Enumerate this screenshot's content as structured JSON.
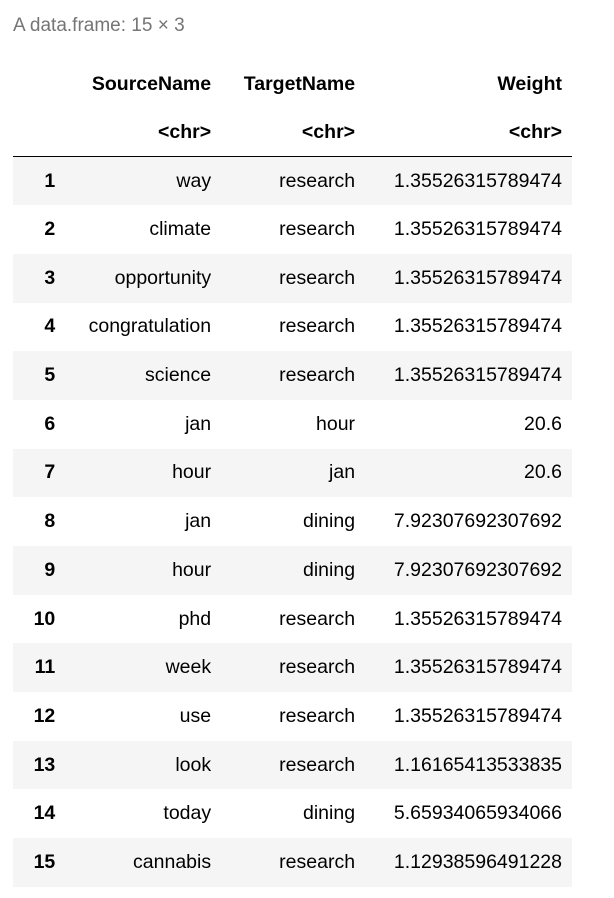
{
  "caption": "A data.frame: 15 × 3",
  "columns": [
    {
      "name": "",
      "type": ""
    },
    {
      "name": "SourceName",
      "type": "<chr>"
    },
    {
      "name": "TargetName",
      "type": "<chr>"
    },
    {
      "name": "Weight",
      "type": "<chr>"
    }
  ],
  "rows": [
    {
      "idx": "1",
      "source": "way",
      "target": "research",
      "weight": "1.35526315789474"
    },
    {
      "idx": "2",
      "source": "climate",
      "target": "research",
      "weight": "1.35526315789474"
    },
    {
      "idx": "3",
      "source": "opportunity",
      "target": "research",
      "weight": "1.35526315789474"
    },
    {
      "idx": "4",
      "source": "congratulation",
      "target": "research",
      "weight": "1.35526315789474"
    },
    {
      "idx": "5",
      "source": "science",
      "target": "research",
      "weight": "1.35526315789474"
    },
    {
      "idx": "6",
      "source": "jan",
      "target": "hour",
      "weight": "20.6"
    },
    {
      "idx": "7",
      "source": "hour",
      "target": "jan",
      "weight": "20.6"
    },
    {
      "idx": "8",
      "source": "jan",
      "target": "dining",
      "weight": "7.92307692307692"
    },
    {
      "idx": "9",
      "source": "hour",
      "target": "dining",
      "weight": "7.92307692307692"
    },
    {
      "idx": "10",
      "source": "phd",
      "target": "research",
      "weight": "1.35526315789474"
    },
    {
      "idx": "11",
      "source": "week",
      "target": "research",
      "weight": "1.35526315789474"
    },
    {
      "idx": "12",
      "source": "use",
      "target": "research",
      "weight": "1.35526315789474"
    },
    {
      "idx": "13",
      "source": "look",
      "target": "research",
      "weight": "1.16165413533835"
    },
    {
      "idx": "14",
      "source": "today",
      "target": "dining",
      "weight": "5.65934065934066"
    },
    {
      "idx": "15",
      "source": "cannabis",
      "target": "research",
      "weight": "1.12938596491228"
    }
  ]
}
